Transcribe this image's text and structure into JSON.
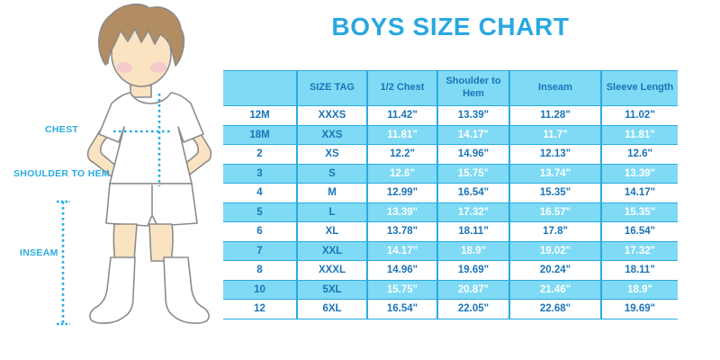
{
  "page_title": "BOYS SIZE CHART",
  "figure": {
    "description": "cartoon boy with measurement guide lines",
    "labels": {
      "chest": "CHEST",
      "shoulder_to_hem": "SHOULDER TO HEM",
      "inseam": "INSEAM"
    }
  },
  "chart_data": {
    "type": "table",
    "title": "BOYS SIZE CHART",
    "columns": [
      "",
      "SIZE TAG",
      "1/2 Chest",
      "Shoulder to Hem",
      "Inseam",
      "Sleeve Length"
    ],
    "rows": [
      [
        "12M",
        "XXXS",
        "11.42\"",
        "13.39\"",
        "11.28\"",
        "11.02\""
      ],
      [
        "18M",
        "XXS",
        "11.81\"",
        "14.17\"",
        "11.7\"",
        "11.81\""
      ],
      [
        "2",
        "XS",
        "12.2\"",
        "14.96\"",
        "12.13\"",
        "12.6\""
      ],
      [
        "3",
        "S",
        "12.6\"",
        "15.75\"",
        "13.74\"",
        "13.39\""
      ],
      [
        "4",
        "M",
        "12.99\"",
        "16.54\"",
        "15.35\"",
        "14.17\""
      ],
      [
        "5",
        "L",
        "13.39\"",
        "17.32\"",
        "16.57\"",
        "15.35\""
      ],
      [
        "6",
        "XL",
        "13.78\"",
        "18.11\"",
        "17.8\"",
        "16.54\""
      ],
      [
        "7",
        "XXL",
        "14.17\"",
        "18.9\"",
        "19.02\"",
        "17.32\""
      ],
      [
        "8",
        "XXXL",
        "14.96\"",
        "19.69\"",
        "20.24\"",
        "18.11\""
      ],
      [
        "10",
        "5XL",
        "15.75\"",
        "20.87\"",
        "21.46\"",
        "18.9\""
      ],
      [
        "12",
        "6XL",
        "16.54\"",
        "22.05\"",
        "22.68\"",
        "19.69\""
      ]
    ],
    "layout": {
      "striped_rows": "alternating starting second data row",
      "header_filled": true
    }
  },
  "colors": {
    "accent_blue": "#29A8E0",
    "guide_line_blue": "#29ABE2",
    "table_stripe": "#7FDAF5",
    "table_border": "#29ABE2",
    "table_text_dark": "#1A74B8",
    "stripe_value_text": "#FFFFFF",
    "skin": "#FAE3C1",
    "hair_brown": "#B28C62",
    "cheek_pink": "#F6C3D0",
    "outline_gray": "#8B8B8B"
  }
}
